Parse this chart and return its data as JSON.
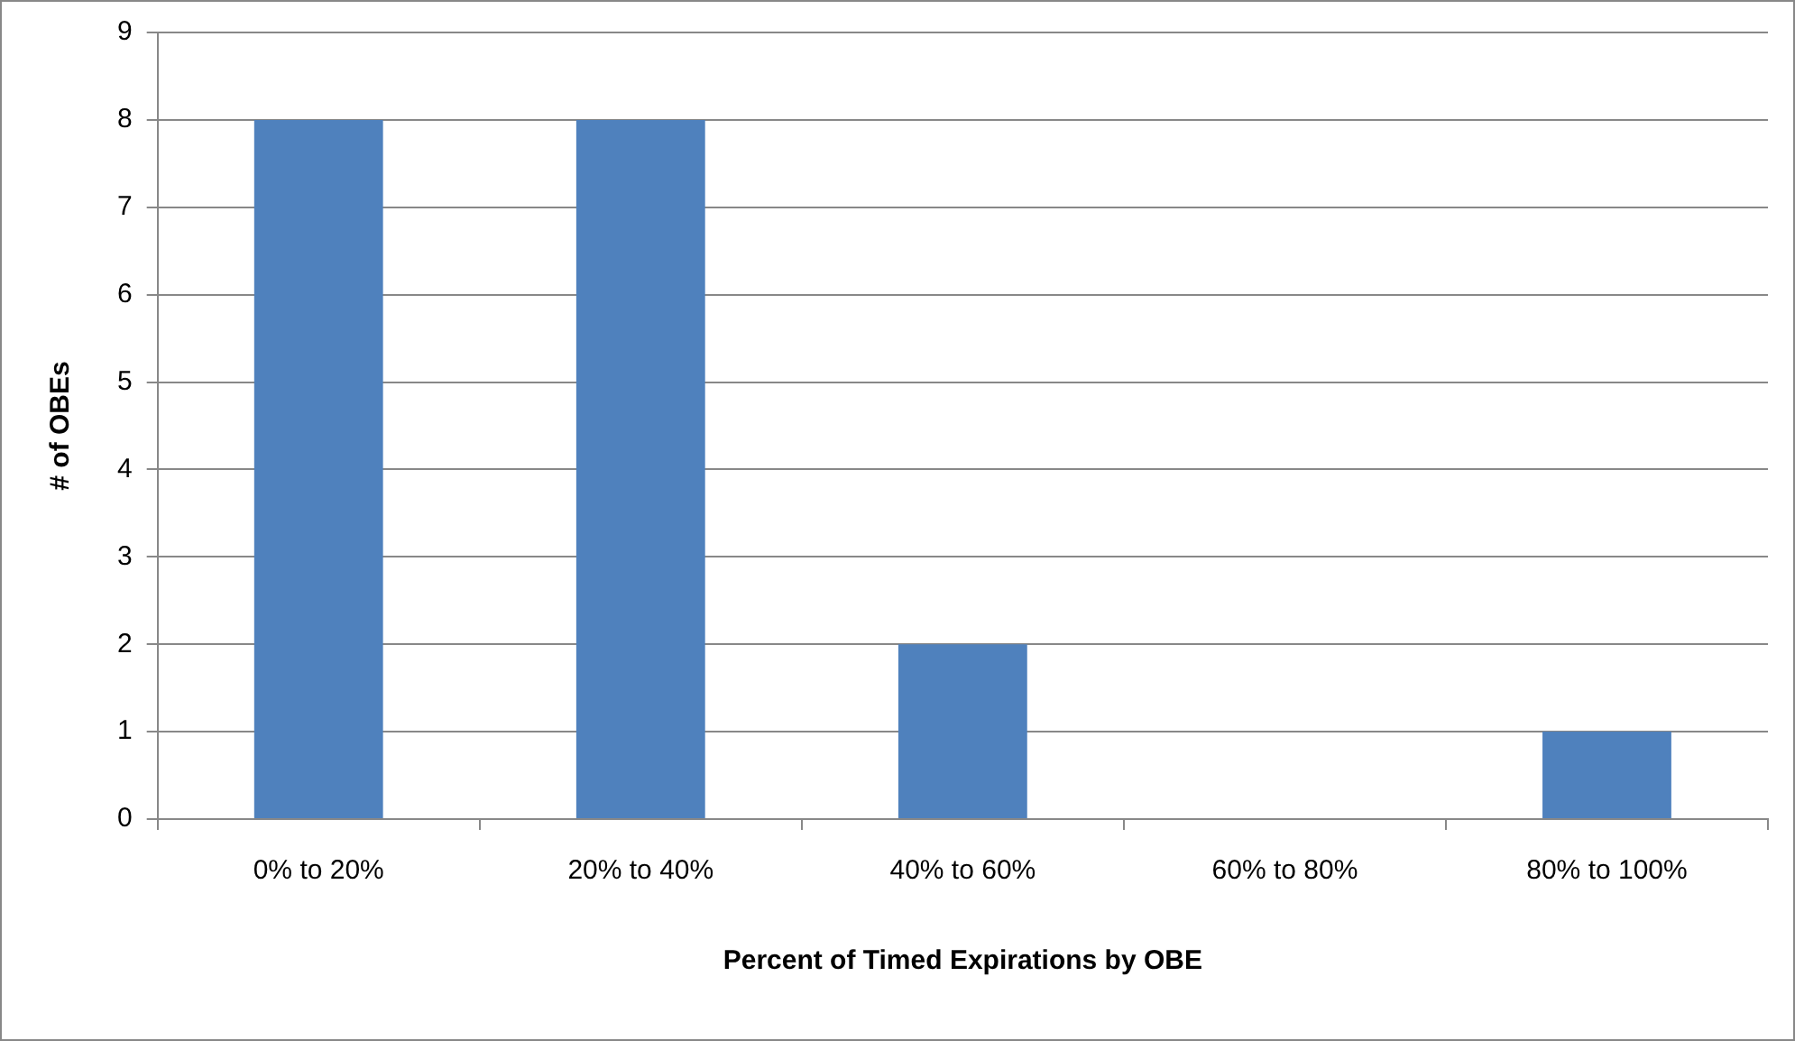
{
  "chart_data": {
    "type": "bar",
    "xlabel": "Percent of Timed Expirations by OBE",
    "ylabel": "# of OBEs",
    "categories": [
      "0% to 20%",
      "20% to 40%",
      "40% to 60%",
      "60% to 80%",
      "80% to 100%"
    ],
    "values": [
      8,
      8,
      2,
      0,
      1
    ],
    "color": "#4f81bd",
    "ylim": [
      0,
      9
    ],
    "yticks": [
      0,
      1,
      2,
      3,
      4,
      5,
      6,
      7,
      8,
      9
    ],
    "grid": "y",
    "legend": false
  }
}
